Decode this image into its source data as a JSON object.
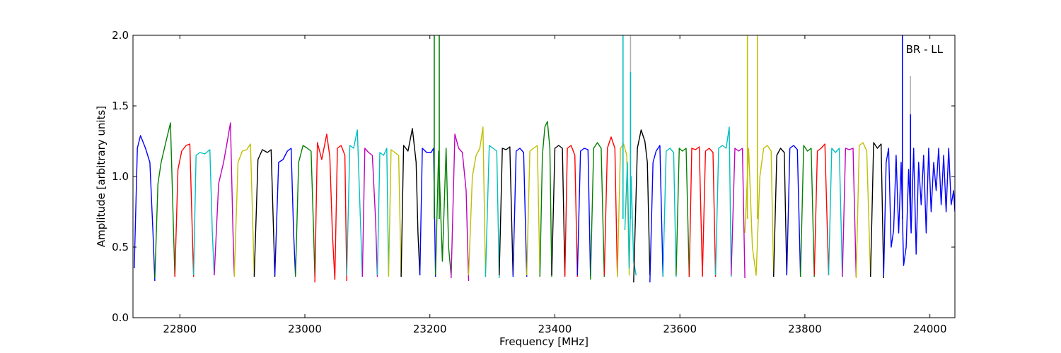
{
  "chart_data": {
    "type": "line",
    "title": "",
    "annotation": "BR - LL",
    "xlabel": "Frequency [MHz]",
    "ylabel": "Amplitude [arbitrary units]",
    "xlim": [
      22725,
      24040
    ],
    "ylim": [
      0.0,
      2.0
    ],
    "xticks": [
      22800,
      23000,
      23200,
      23400,
      23600,
      23800,
      24000
    ],
    "yticks": [
      0.0,
      0.5,
      1.0,
      1.5,
      2.0
    ],
    "xtick_labels": [
      "22800",
      "23000",
      "23200",
      "23400",
      "23600",
      "23800",
      "24000"
    ],
    "ytick_labels": [
      "0.0",
      "0.5",
      "1.0",
      "1.5",
      "2.0"
    ],
    "grid": false,
    "legend": "none",
    "color_cycle": [
      "#0000ff",
      "#008000",
      "#ff0000",
      "#00bfbf",
      "#bf00bf",
      "#bfbf00",
      "#000000"
    ],
    "spike_color": "#b0b0b0",
    "series": [
      {
        "color": "#0000ff",
        "x": [
          22727,
          22732,
          22737,
          22745,
          22752,
          22757,
          22760
        ],
        "y": [
          0.35,
          1.2,
          1.29,
          1.2,
          1.1,
          0.6,
          0.26
        ]
      },
      {
        "color": "#008000",
        "x": [
          22760,
          22765,
          22770,
          22778,
          22785,
          22790,
          22792
        ],
        "y": [
          0.28,
          0.95,
          1.1,
          1.25,
          1.38,
          0.6,
          0.29
        ]
      },
      {
        "color": "#ff0000",
        "x": [
          22792,
          22797,
          22803,
          22810,
          22816,
          22820,
          22822
        ],
        "y": [
          0.29,
          1.05,
          1.18,
          1.22,
          1.23,
          0.6,
          0.29
        ]
      },
      {
        "color": "#00bfbf",
        "x": [
          22822,
          22826,
          22832,
          22840,
          22848,
          22852,
          22855
        ],
        "y": [
          0.3,
          1.15,
          1.17,
          1.16,
          1.19,
          0.6,
          0.3
        ]
      },
      {
        "color": "#bf00bf",
        "x": [
          22855,
          22862,
          22870,
          22876,
          22881,
          22885,
          22887
        ],
        "y": [
          0.3,
          0.95,
          1.1,
          1.25,
          1.38,
          0.6,
          0.3
        ]
      },
      {
        "color": "#bfbf00",
        "x": [
          22887,
          22893,
          22900,
          22907,
          22913,
          22917,
          22919
        ],
        "y": [
          0.29,
          1.1,
          1.18,
          1.19,
          1.23,
          0.6,
          0.29
        ]
      },
      {
        "color": "#000000",
        "x": [
          22919,
          22925,
          22932,
          22940,
          22946,
          22950,
          22952
        ],
        "y": [
          0.29,
          1.12,
          1.19,
          1.17,
          1.19,
          0.6,
          0.29
        ]
      },
      {
        "color": "#0000ff",
        "x": [
          22952,
          22958,
          22965,
          22972,
          22978,
          22982,
          22985
        ],
        "y": [
          0.3,
          1.1,
          1.12,
          1.18,
          1.2,
          0.6,
          0.3
        ]
      },
      {
        "color": "#008000",
        "x": [
          22985,
          22990,
          22997,
          23004,
          23010,
          23014,
          23016
        ],
        "y": [
          0.29,
          1.1,
          1.22,
          1.2,
          1.18,
          0.6,
          0.29
        ]
      },
      {
        "color": "#ff0000",
        "x": [
          23016,
          23020,
          23027,
          23035,
          23040,
          23044,
          23048
        ],
        "y": [
          0.25,
          1.24,
          1.12,
          1.3,
          1.14,
          0.6,
          0.27
        ]
      },
      {
        "color": "#ff0000",
        "x": [
          23048,
          23052,
          23058,
          23064,
          23067
        ],
        "y": [
          0.27,
          1.2,
          1.22,
          1.15,
          0.26
        ]
      },
      {
        "color": "#00bfbf",
        "x": [
          23067,
          23072,
          23078,
          23084,
          23088,
          23092
        ],
        "y": [
          0.3,
          1.22,
          1.2,
          1.33,
          0.8,
          0.29
        ]
      },
      {
        "color": "#bf00bf",
        "x": [
          23092,
          23096,
          23102,
          23108,
          23113,
          23116
        ],
        "y": [
          0.29,
          1.2,
          1.17,
          1.15,
          0.7,
          0.29
        ]
      },
      {
        "color": "#00bfbf",
        "x": [
          23116,
          23120,
          23126,
          23131,
          23134
        ],
        "y": [
          0.3,
          1.17,
          1.15,
          1.2,
          0.3
        ]
      },
      {
        "color": "#bfbf00",
        "x": [
          23134,
          23138,
          23144,
          23150,
          23154
        ],
        "y": [
          0.29,
          1.19,
          1.17,
          1.15,
          0.29
        ]
      },
      {
        "color": "#000000",
        "x": [
          23154,
          23158,
          23165,
          23172,
          23178,
          23181,
          23184
        ],
        "y": [
          0.29,
          1.22,
          1.18,
          1.34,
          1.1,
          0.6,
          0.3
        ]
      },
      {
        "color": "#0000ff",
        "x": [
          23184,
          23188,
          23195,
          23202,
          23206,
          23209
        ],
        "y": [
          0.3,
          1.2,
          1.17,
          1.17,
          1.2,
          0.29
        ]
      },
      {
        "color": "#008000",
        "x": [
          23209,
          23214,
          23220,
          23226,
          23230,
          23234
        ],
        "y": [
          0.3,
          1.18,
          0.4,
          1.2,
          0.5,
          0.3
        ]
      },
      {
        "color": "#bf00bf",
        "x": [
          23234,
          23240,
          23246,
          23252,
          23258,
          23262
        ],
        "y": [
          0.28,
          1.3,
          1.2,
          1.17,
          0.9,
          0.26
        ]
      },
      {
        "color": "#bfbf00",
        "x": [
          23262,
          23268,
          23274,
          23280,
          23285,
          23289
        ],
        "y": [
          0.3,
          1.0,
          1.15,
          1.2,
          1.35,
          0.29
        ]
      },
      {
        "color": "#00bfbf",
        "x": [
          23289,
          23295,
          23301,
          23307,
          23311
        ],
        "y": [
          0.29,
          1.22,
          1.2,
          1.18,
          0.28
        ]
      },
      {
        "color": "#000000",
        "x": [
          23311,
          23316,
          23322,
          23328,
          23333
        ],
        "y": [
          0.3,
          1.2,
          1.19,
          1.21,
          0.3
        ]
      },
      {
        "color": "#0000ff",
        "x": [
          23333,
          23338,
          23344,
          23350,
          23355
        ],
        "y": [
          0.29,
          1.18,
          1.2,
          1.17,
          0.29
        ]
      },
      {
        "color": "#bfbf00",
        "x": [
          23355,
          23360,
          23366,
          23372,
          23376
        ],
        "y": [
          0.3,
          1.18,
          1.2,
          1.22,
          0.29
        ]
      },
      {
        "color": "#008000",
        "x": [
          23376,
          23380,
          23384,
          23388,
          23392,
          23395
        ],
        "y": [
          0.29,
          1.15,
          1.35,
          1.39,
          1.2,
          0.29
        ]
      },
      {
        "color": "#000000",
        "x": [
          23395,
          23400,
          23406,
          23412,
          23416
        ],
        "y": [
          0.3,
          1.2,
          1.22,
          1.2,
          0.3
        ]
      },
      {
        "color": "#ff0000",
        "x": [
          23416,
          23420,
          23426,
          23432,
          23436
        ],
        "y": [
          0.29,
          1.2,
          1.22,
          1.15,
          0.29
        ]
      },
      {
        "color": "#0000ff",
        "x": [
          23436,
          23441,
          23447,
          23453,
          23457
        ],
        "y": [
          0.3,
          1.18,
          1.2,
          1.19,
          0.29
        ]
      },
      {
        "color": "#008000",
        "x": [
          23457,
          23462,
          23468,
          23474,
          23479
        ],
        "y": [
          0.27,
          1.2,
          1.24,
          1.2,
          0.29
        ]
      },
      {
        "color": "#ff0000",
        "x": [
          23479,
          23484,
          23490,
          23496,
          23500
        ],
        "y": [
          0.3,
          1.2,
          1.28,
          1.2,
          0.29
        ]
      },
      {
        "color": "#bfbf00",
        "x": [
          23500,
          23505,
          23510,
          23515,
          23519
        ],
        "y": [
          0.29,
          1.2,
          1.23,
          1.15,
          0.3
        ]
      },
      {
        "color": "#00bfbf",
        "x": [
          23512,
          23516,
          23519,
          23522,
          23526,
          23530
        ],
        "y": [
          0.62,
          1.1,
          0.35,
          1.0,
          0.4,
          0.3
        ]
      },
      {
        "color": "#000000",
        "x": [
          23526,
          23532,
          23538,
          23544,
          23548,
          23552
        ],
        "y": [
          0.25,
          1.2,
          1.33,
          1.25,
          1.1,
          0.3
        ]
      },
      {
        "color": "#0000ff",
        "x": [
          23552,
          23557,
          23562,
          23568,
          23573
        ],
        "y": [
          0.25,
          1.1,
          1.18,
          1.22,
          0.29
        ]
      },
      {
        "color": "#00bfbf",
        "x": [
          23573,
          23578,
          23584,
          23590,
          23594
        ],
        "y": [
          0.29,
          1.18,
          1.2,
          1.17,
          0.29
        ]
      },
      {
        "color": "#008000",
        "x": [
          23594,
          23599,
          23604,
          23610,
          23615
        ],
        "y": [
          0.3,
          1.2,
          1.18,
          1.2,
          0.29
        ]
      },
      {
        "color": "#ff0000",
        "x": [
          23615,
          23619,
          23625,
          23631,
          23636
        ],
        "y": [
          0.29,
          1.2,
          1.19,
          1.21,
          0.3
        ]
      },
      {
        "color": "#ff0000",
        "x": [
          23636,
          23641,
          23647,
          23653,
          23657
        ],
        "y": [
          0.29,
          1.18,
          1.2,
          1.17,
          0.29
        ]
      },
      {
        "color": "#00bfbf",
        "x": [
          23657,
          23662,
          23668,
          23674,
          23679,
          23682
        ],
        "y": [
          0.3,
          1.2,
          1.22,
          1.2,
          1.35,
          0.29
        ]
      },
      {
        "color": "#bf00bf",
        "x": [
          23682,
          23688,
          23694,
          23700,
          23704
        ],
        "y": [
          0.3,
          1.2,
          1.18,
          1.2,
          0.28
        ]
      },
      {
        "color": "#bfbf00",
        "x": [
          23704,
          23710,
          23716,
          23722,
          23728,
          23734,
          23740,
          23746,
          23750
        ],
        "y": [
          0.6,
          1.2,
          0.5,
          0.3,
          1.0,
          1.2,
          1.22,
          1.18,
          0.29
        ]
      },
      {
        "color": "#000000",
        "x": [
          23750,
          23755,
          23761,
          23767,
          23771
        ],
        "y": [
          0.29,
          1.15,
          1.2,
          1.17,
          0.3
        ]
      },
      {
        "color": "#0000ff",
        "x": [
          23771,
          23776,
          23782,
          23788,
          23793
        ],
        "y": [
          0.3,
          1.2,
          1.22,
          1.19,
          0.29
        ]
      },
      {
        "color": "#008000",
        "x": [
          23793,
          23798,
          23804,
          23810,
          23815
        ],
        "y": [
          0.29,
          1.22,
          1.18,
          1.2,
          0.29
        ]
      },
      {
        "color": "#ff0000",
        "x": [
          23815,
          23820,
          23826,
          23832,
          23838
        ],
        "y": [
          0.3,
          1.18,
          1.2,
          1.23,
          0.3
        ]
      },
      {
        "color": "#00bfbf",
        "x": [
          23838,
          23843,
          23849,
          23855,
          23860
        ],
        "y": [
          0.3,
          1.2,
          1.17,
          1.2,
          0.29
        ]
      },
      {
        "color": "#bf00bf",
        "x": [
          23860,
          23865,
          23871,
          23877,
          23882
        ],
        "y": [
          0.29,
          1.2,
          1.19,
          1.2,
          0.29
        ]
      },
      {
        "color": "#bfbf00",
        "x": [
          23882,
          23887,
          23893,
          23899,
          23905
        ],
        "y": [
          0.28,
          1.22,
          1.24,
          1.18,
          0.29
        ]
      },
      {
        "color": "#000000",
        "x": [
          23905,
          23910,
          23916,
          23922,
          23926
        ],
        "y": [
          0.29,
          1.24,
          1.2,
          1.23,
          0.28
        ]
      },
      {
        "color": "#0000ff",
        "x": [
          23926,
          23930,
          23934,
          23938,
          23942,
          23946,
          23950,
          23954,
          23958,
          23962,
          23966,
          23970,
          23974,
          23978,
          23982,
          23986,
          23990,
          23994,
          23998,
          24002,
          24006,
          24010,
          24014,
          24018,
          24022,
          24026,
          24030,
          24034,
          24038,
          24040
        ],
        "y": [
          0.3,
          1.1,
          1.2,
          0.5,
          0.62,
          1.15,
          0.6,
          1.1,
          0.37,
          0.5,
          1.05,
          0.6,
          1.2,
          0.45,
          1.1,
          0.8,
          1.15,
          0.6,
          1.2,
          0.75,
          1.1,
          0.9,
          1.2,
          0.8,
          1.15,
          0.75,
          1.2,
          0.8,
          0.9,
          0.75
        ]
      }
    ],
    "spikes": [
      {
        "x": 23207,
        "y": 2.0,
        "color": "#008000"
      },
      {
        "x": 23215,
        "y": 2.0,
        "color": "#008000"
      },
      {
        "x": 23509,
        "y": 2.0,
        "color": "#00bfbf"
      },
      {
        "x": 23521,
        "y": 2.0,
        "color": "#b0b0b0"
      },
      {
        "x": 23521,
        "y": 1.74,
        "color": "#00bfbf"
      },
      {
        "x": 23708,
        "y": 2.0,
        "color": "#bfbf00"
      },
      {
        "x": 23724,
        "y": 2.0,
        "color": "#bfbf00"
      },
      {
        "x": 23956,
        "y": 2.0,
        "color": "#0000ff"
      },
      {
        "x": 23969,
        "y": 1.71,
        "color": "#b0b0b0"
      },
      {
        "x": 23969,
        "y": 1.44,
        "color": "#0000ff"
      }
    ]
  }
}
